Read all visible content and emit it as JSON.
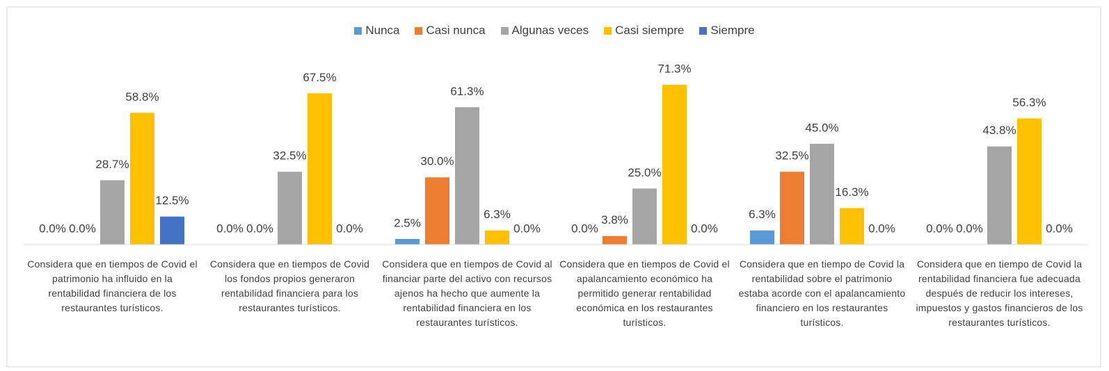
{
  "chart_data": {
    "type": "bar",
    "categories": [
      "Considera que en tiempos de Covid el patrimonio ha influido en la rentabilidad financiera de los restaurantes turísticos.",
      "Considera que en tiempos de Covid los fondos propios generaron rentabilidad financiera para los restaurantes turísticos.",
      "Considera que en tiempos de Covid al financiar parte del activo con recursos ajenos ha hecho que aumente la rentabilidad financiera en los restaurantes turísticos.",
      "Considera que en tiempos de Covid el apalancamiento económico ha permitido generar rentabilidad económica en los restaurantes turísticos.",
      "Considera que en tiempo de Covid la rentabilidad sobre el patrimonio estaba acorde con el apalancamiento financiero en los restaurantes turísticos.",
      "Considera que en tiempo de Covid la rentabilidad financiera fue adecuada después de reducir los intereses, impuestos y gastos financieros de los restaurantes turísticos."
    ],
    "series": [
      {
        "name": "Nunca",
        "color": "#5b9bd5",
        "values": [
          0,
          0,
          2.5,
          0,
          6.3,
          0
        ],
        "value_labels": [
          "0.0%",
          "0.0%",
          "2.5%",
          "0.0%",
          "6.3%",
          "0.0%"
        ]
      },
      {
        "name": "Casi nunca",
        "color": "#ed7d31",
        "values": [
          0,
          0,
          30,
          3.8,
          32.5,
          0
        ],
        "value_labels": [
          "0.0%",
          "0.0%",
          "30.0%",
          "3.8%",
          "32.5%",
          "0.0%"
        ]
      },
      {
        "name": "Algunas veces",
        "color": "#a5a5a5",
        "values": [
          28.7,
          32.5,
          61.3,
          25,
          45,
          43.8
        ],
        "value_labels": [
          "28.7%",
          "32.5%",
          "61.3%",
          "25.0%",
          "45.0%",
          "43.8%"
        ]
      },
      {
        "name": "Casi siempre",
        "color": "#ffc000",
        "values": [
          58.8,
          67.5,
          6.3,
          71.3,
          16.3,
          56.3
        ],
        "value_labels": [
          "58.8%",
          "67.5%",
          "6.3%",
          "71.3%",
          "16.3%",
          "56.3%"
        ]
      },
      {
        "name": "Siempre",
        "color": "#4472c4",
        "values": [
          12.5,
          0,
          0,
          0,
          0,
          0
        ],
        "value_labels": [
          "12.5%",
          "0.0%",
          "0.0%",
          "0.0%",
          "0.0%",
          "0.0%"
        ]
      }
    ],
    "ylim": [
      0,
      80
    ],
    "legend": "top"
  }
}
